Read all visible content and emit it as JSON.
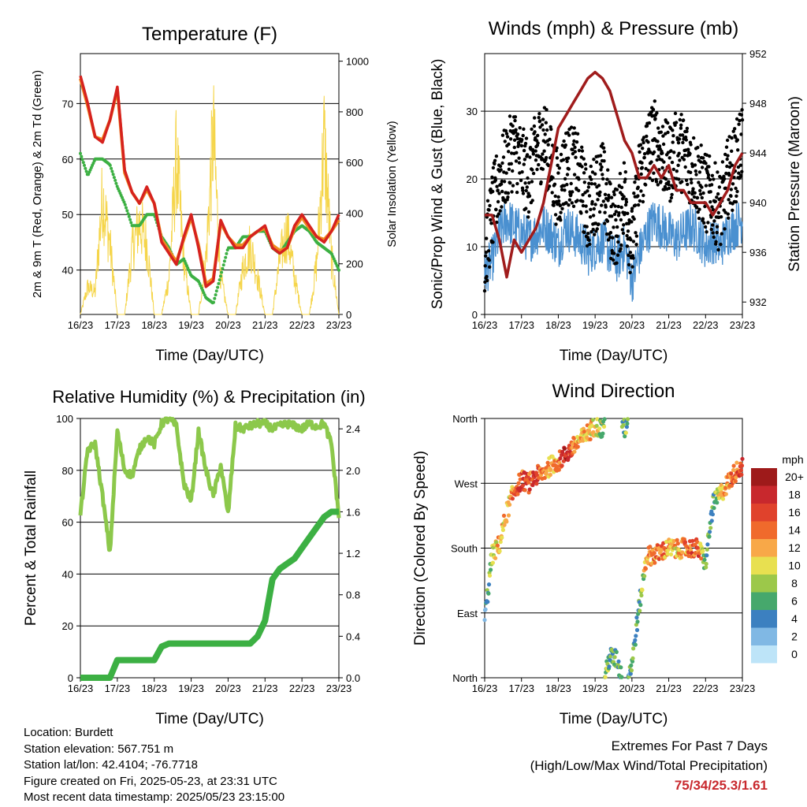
{
  "x_tick_labels": [
    "16/23",
    "17/23",
    "18/23",
    "19/23",
    "20/23",
    "21/23",
    "22/23",
    "23/23"
  ],
  "colors": {
    "temp_2m": "#d6221e",
    "temp_9m": "#ef8a1f",
    "dewpoint": "#3cb043",
    "solar": "#f5d54a",
    "wind_sonic": "#4a90d0",
    "wind_gust": "#000000",
    "pressure": "#a01c1c",
    "rh": "#8cc84b",
    "rain": "#3cb043",
    "extremes_values": "#c8282d"
  },
  "chart_data": [
    {
      "type": "line",
      "title": "Temperature (F)",
      "xlabel": "Time (Day/UTC)",
      "ylabel": "2m & 9m T (Red, Orange) & 2m Td (Green)",
      "y2label": "Solar Insolation (Yellow)",
      "x_days": [
        0,
        0.2,
        0.4,
        0.6,
        0.8,
        1,
        1.2,
        1.4,
        1.6,
        1.8,
        2,
        2.2,
        2.4,
        2.6,
        2.8,
        3,
        3.2,
        3.4,
        3.6,
        3.8,
        4,
        4.2,
        4.4,
        4.6,
        4.8,
        5,
        5.2,
        5.4,
        5.6,
        5.8,
        6,
        6.2,
        6.4,
        6.6,
        6.8,
        7
      ],
      "ylim": [
        32,
        79
      ],
      "y2lim": [
        0,
        1030
      ],
      "y_ticks": [
        40,
        50,
        60,
        70
      ],
      "y2_ticks": [
        0,
        200,
        400,
        600,
        800,
        1000
      ],
      "series": [
        {
          "name": "2m T",
          "values": [
            75,
            70,
            64,
            63,
            67,
            73,
            58,
            54,
            52,
            55,
            52,
            45,
            43,
            41,
            46,
            50,
            44,
            37,
            38,
            49,
            46,
            44,
            44,
            46,
            47,
            48,
            44,
            43,
            44,
            48,
            50,
            48,
            46,
            45,
            47,
            50
          ]
        },
        {
          "name": "9m T",
          "values": [
            74.5,
            69.5,
            64,
            63.5,
            67,
            72.5,
            57.5,
            54,
            52,
            54.5,
            52,
            45.5,
            43.5,
            41.5,
            45.5,
            49.5,
            44.5,
            37.5,
            38.5,
            48.5,
            46,
            44.5,
            44.5,
            46,
            47,
            47.5,
            44.5,
            43.5,
            44,
            47.5,
            49.5,
            47.5,
            46,
            45.5,
            47,
            49
          ]
        },
        {
          "name": "2m Td",
          "values": [
            61,
            57,
            60,
            60,
            59,
            55,
            52,
            48,
            48,
            50,
            50,
            46,
            44,
            41,
            42,
            39,
            38,
            35,
            34,
            39,
            44,
            44,
            46,
            46,
            47,
            47,
            44,
            43,
            45,
            47,
            48,
            47,
            45,
            44,
            43,
            40
          ]
        },
        {
          "name": "Solar Insolation",
          "values": [
            0,
            150,
            120,
            650,
            380,
            0,
            0,
            350,
            500,
            380,
            0,
            0,
            200,
            850,
            300,
            0,
            0,
            300,
            980,
            200,
            0,
            0,
            250,
            380,
            200,
            0,
            0,
            300,
            450,
            200,
            0,
            0,
            280,
            950,
            300,
            0
          ]
        }
      ]
    },
    {
      "type": "scatter",
      "title": "Winds (mph) & Pressure (mb)",
      "xlabel": "Time (Day/UTC)",
      "ylabel": "Sonic/Prop Wind & Gust (Blue, Black)",
      "y2label": "Station Pressure (Maroon)",
      "x_days": [
        0,
        0.2,
        0.4,
        0.6,
        0.8,
        1,
        1.2,
        1.4,
        1.6,
        1.8,
        2,
        2.2,
        2.4,
        2.6,
        2.8,
        3,
        3.2,
        3.4,
        3.6,
        3.8,
        4,
        4.2,
        4.4,
        4.6,
        4.8,
        5,
        5.2,
        5.4,
        5.6,
        5.8,
        6,
        6.2,
        6.4,
        6.6,
        6.8,
        7
      ],
      "ylim": [
        0,
        38.5
      ],
      "y2lim": [
        931,
        952
      ],
      "y_ticks": [
        0,
        10,
        20,
        30
      ],
      "y2_ticks": [
        932,
        936,
        940,
        944,
        948,
        952
      ],
      "series": [
        {
          "name": "Sonic/Prop Wind",
          "values": [
            6,
            8,
            12,
            14,
            13,
            12,
            11,
            12,
            13,
            12,
            10,
            13,
            12,
            11,
            9,
            10,
            11,
            9,
            8,
            10,
            5,
            9,
            12,
            14,
            13,
            12,
            11,
            12,
            13,
            12,
            10,
            11,
            10,
            12,
            13,
            14
          ]
        },
        {
          "name": "Gust",
          "values": [
            8,
            15,
            20,
            22,
            25,
            22,
            20,
            24,
            26,
            22,
            18,
            22,
            22,
            20,
            15,
            18,
            20,
            14,
            13,
            18,
            10,
            20,
            24,
            26,
            24,
            22,
            24,
            24,
            22,
            20,
            18,
            17,
            15,
            20,
            22,
            26
          ]
        },
        {
          "name": "Station Pressure",
          "values": [
            939,
            939,
            937,
            934,
            937,
            936,
            937,
            938,
            940,
            943,
            946,
            947,
            948,
            949,
            950,
            950.5,
            950,
            949,
            947,
            945,
            944,
            942,
            942,
            943,
            942,
            943,
            941,
            941,
            940,
            940,
            940,
            939,
            940,
            941,
            943,
            944
          ]
        }
      ]
    },
    {
      "type": "line",
      "title": "Relative Humidity (%) & Precipitation (in)",
      "xlabel": "Time (Day/UTC)",
      "ylabel": "Percent & Total Rainfall",
      "x_days": [
        0,
        0.2,
        0.4,
        0.6,
        0.8,
        1,
        1.2,
        1.4,
        1.6,
        1.8,
        2,
        2.2,
        2.4,
        2.6,
        2.8,
        3,
        3.2,
        3.4,
        3.6,
        3.8,
        4,
        4.2,
        4.4,
        4.6,
        4.8,
        5,
        5.2,
        5.4,
        5.6,
        5.8,
        6,
        6.2,
        6.4,
        6.6,
        6.8,
        7
      ],
      "ylim": [
        0,
        100
      ],
      "y2lim": [
        0,
        2.5
      ],
      "y_ticks": [
        0,
        20,
        40,
        60,
        80,
        100
      ],
      "y2_ticks": [
        0.0,
        0.4,
        0.8,
        1.2,
        1.6,
        2.0,
        2.4
      ],
      "series": [
        {
          "name": "Relative Humidity",
          "values": [
            63,
            88,
            90,
            70,
            48,
            95,
            80,
            78,
            88,
            93,
            90,
            98,
            100,
            97,
            75,
            68,
            95,
            80,
            70,
            82,
            63,
            97,
            96,
            97,
            98,
            98,
            96,
            97,
            98,
            97,
            96,
            98,
            97,
            98,
            90,
            62
          ]
        },
        {
          "name": "Total Rainfall",
          "values": [
            0,
            0,
            0,
            0,
            0,
            0.17,
            0.17,
            0.17,
            0.17,
            0.17,
            0.17,
            0.3,
            0.33,
            0.33,
            0.33,
            0.33,
            0.33,
            0.33,
            0.33,
            0.33,
            0.33,
            0.33,
            0.33,
            0.33,
            0.4,
            0.55,
            0.95,
            1.05,
            1.1,
            1.15,
            1.25,
            1.35,
            1.45,
            1.55,
            1.6,
            1.6
          ]
        }
      ]
    },
    {
      "type": "scatter",
      "title": "Wind Direction",
      "xlabel": "Time (Day/UTC)",
      "ylabel": "Direction (Colored By Speed)",
      "y_tick_labels": [
        "North",
        "East",
        "South",
        "West",
        "North"
      ],
      "y_tick_values": [
        0,
        90,
        180,
        270,
        360
      ],
      "ylim": [
        0,
        360
      ],
      "x_days": [
        0,
        0.2,
        0.4,
        0.6,
        0.8,
        1,
        1.2,
        1.4,
        1.6,
        1.8,
        2,
        2.2,
        2.4,
        2.6,
        2.8,
        3,
        3.2,
        3.4,
        3.6,
        3.8,
        4,
        4.2,
        4.4,
        4.6,
        4.8,
        5,
        5.2,
        5.4,
        5.6,
        5.8,
        6,
        6.2,
        6.4,
        6.6,
        6.8,
        7
      ],
      "direction_deg": [
        80,
        170,
        185,
        230,
        260,
        275,
        270,
        280,
        285,
        295,
        300,
        310,
        320,
        330,
        340,
        350,
        345,
        30,
        25,
        345,
        20,
        100,
        170,
        170,
        175,
        180,
        178,
        180,
        180,
        180,
        160,
        240,
        255,
        270,
        285,
        295
      ],
      "speed_mph": [
        3,
        8,
        12,
        10,
        14,
        16,
        15,
        16,
        13,
        12,
        14,
        17,
        15,
        11,
        12,
        10,
        8,
        6,
        5,
        7,
        5,
        6,
        12,
        13,
        14,
        12,
        11,
        13,
        14,
        15,
        6,
        6,
        10,
        12,
        14,
        16
      ],
      "colorbar": {
        "label": "mph",
        "tick_labels": [
          "20+",
          "18",
          "16",
          "14",
          "12",
          "10",
          "8",
          "6",
          "4",
          "2",
          "0"
        ],
        "colors": [
          "#9e1a1a",
          "#c8282d",
          "#e0422c",
          "#f06a2c",
          "#f8a848",
          "#e8e050",
          "#9cc84a",
          "#46a86c",
          "#3c80c0",
          "#80b8e4",
          "#bde4f8"
        ]
      }
    }
  ],
  "info": {
    "location": "Location: Burdett",
    "elevation": "Station elevation: 567.751 m",
    "latlon": "Station lat/lon: 42.4104; -76.7718",
    "created": "Figure created on Fri, 2025-05-23, at 23:31 UTC",
    "timestamp": "Most recent data timestamp: 2025/05/23 23:15:00"
  },
  "extremes": {
    "title": "Extremes For Past 7 Days",
    "subtitle": "(High/Low/Max Wind/Total Precipitation)",
    "values": "75/34/25.3/1.61"
  }
}
